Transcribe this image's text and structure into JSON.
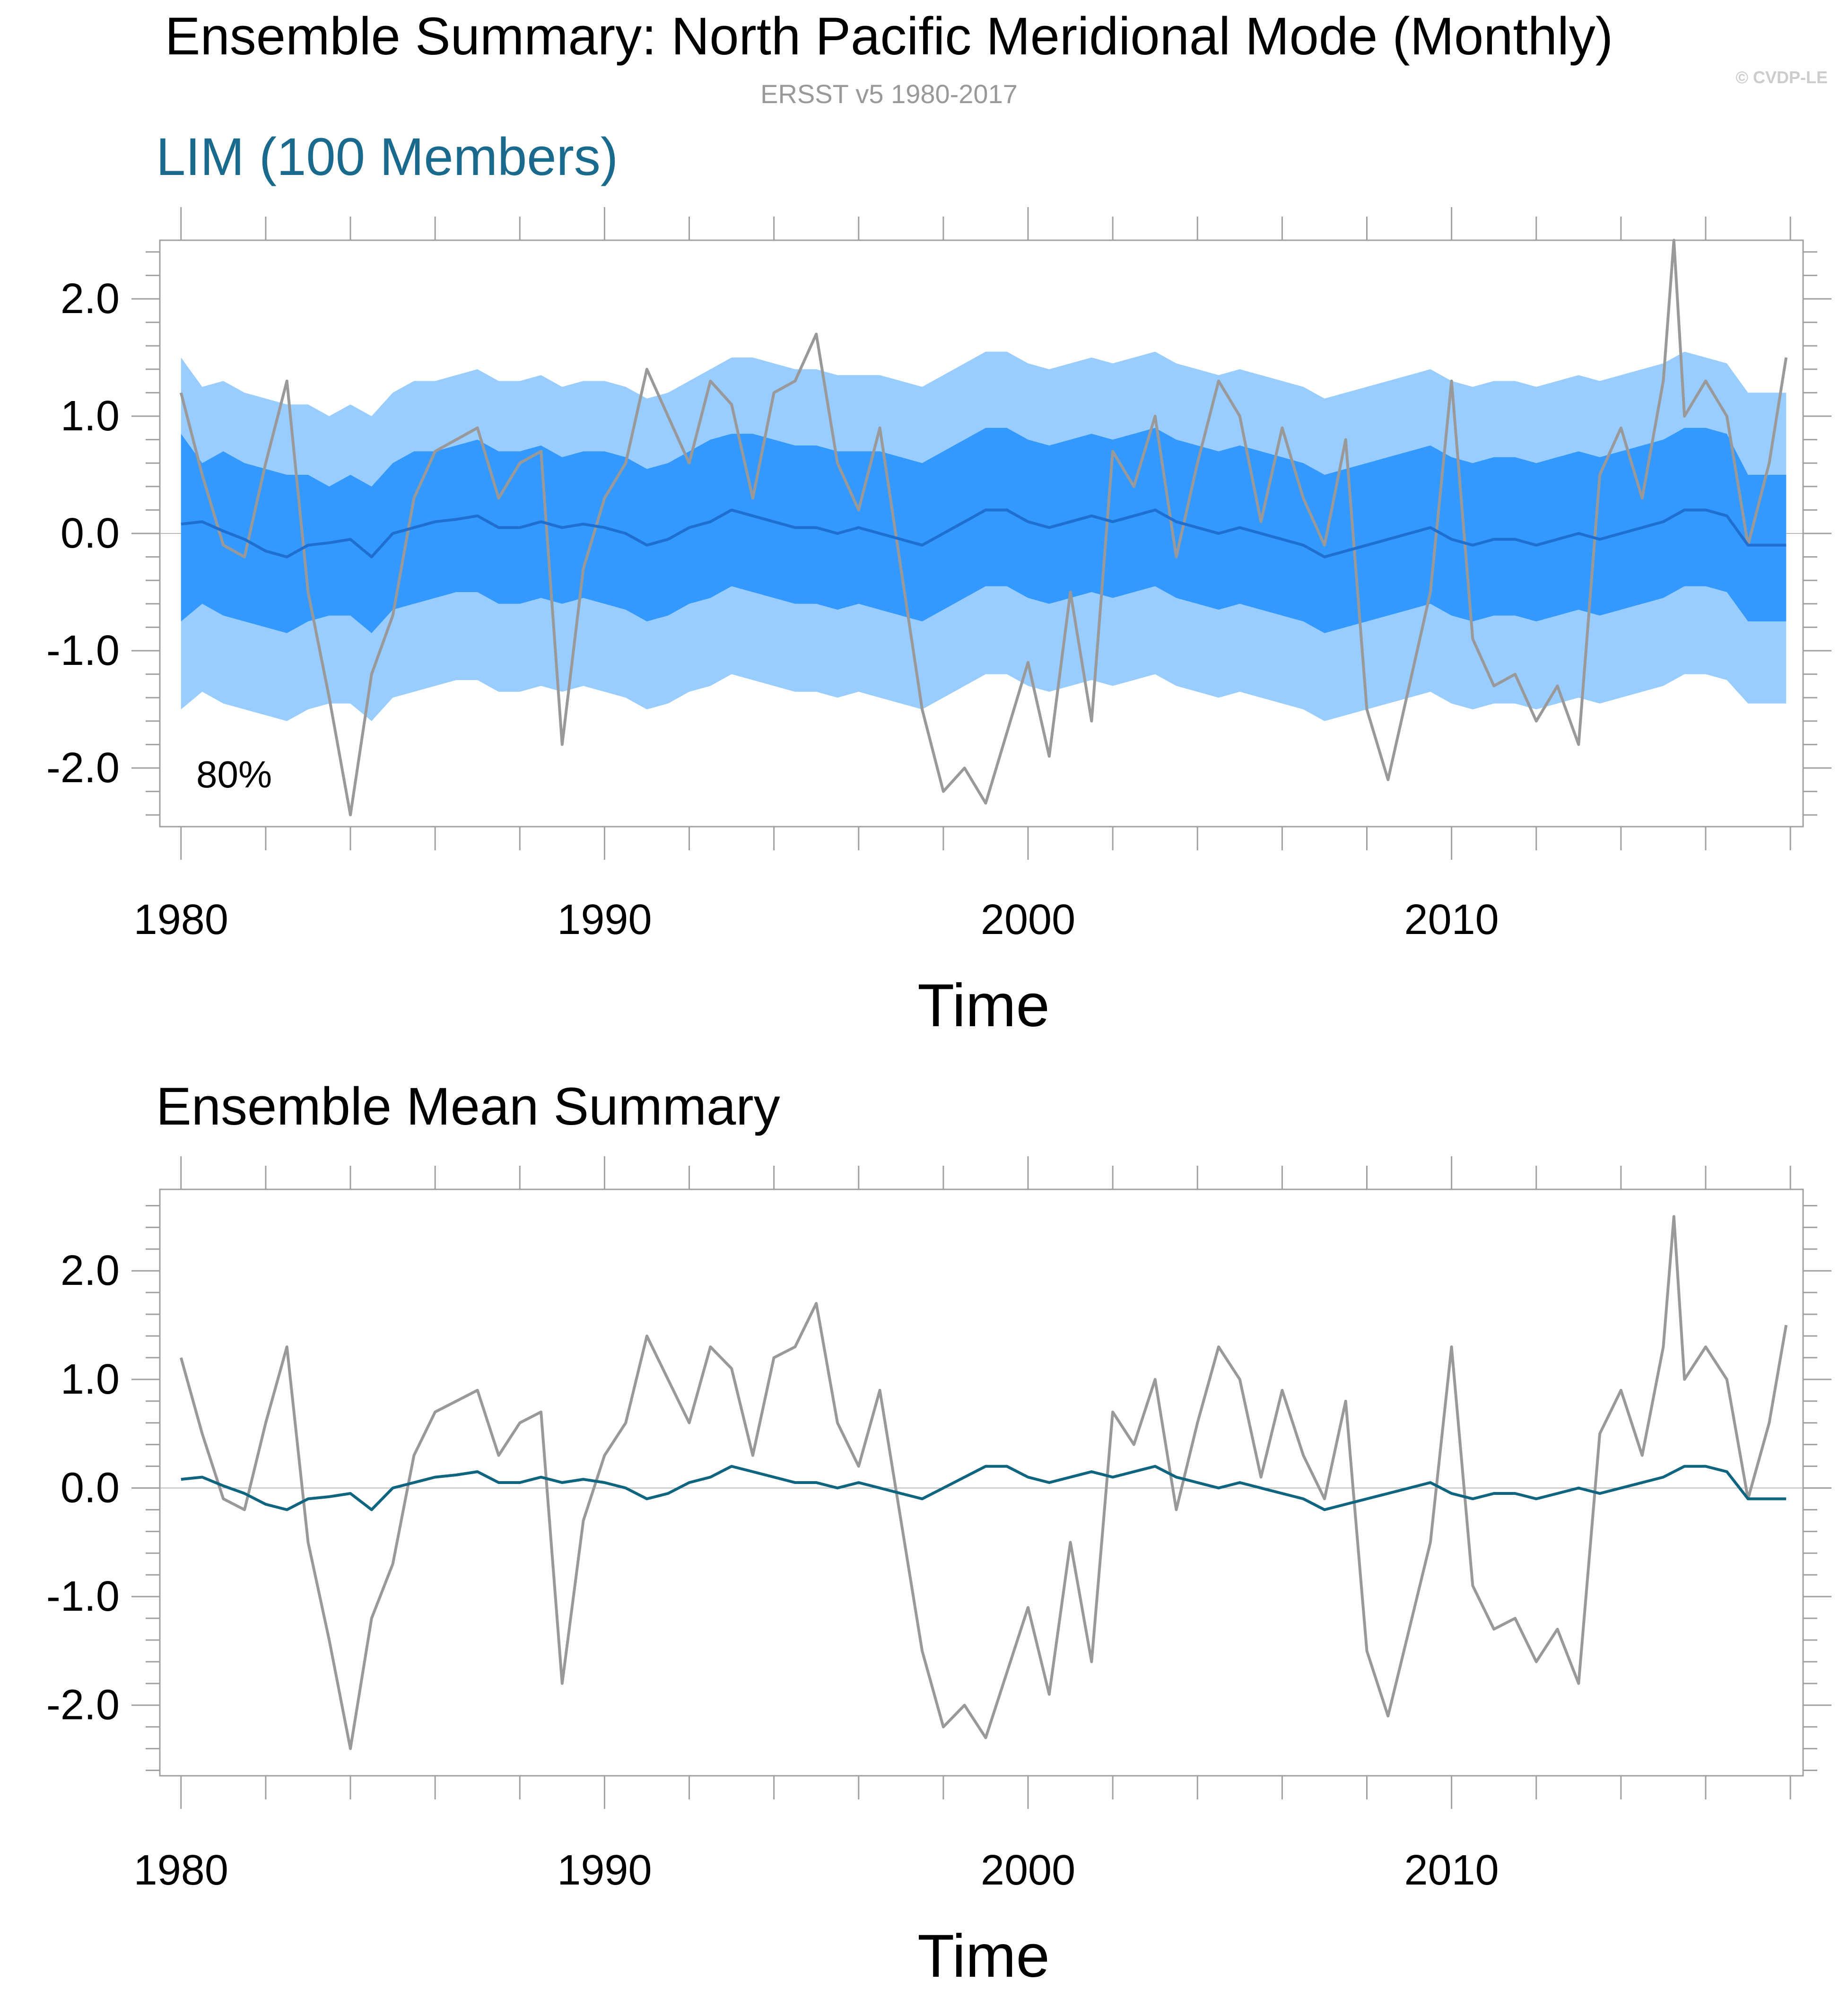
{
  "title": "Ensemble Summary: North Pacific Meridional Mode (Monthly)",
  "subtitle": "ERSST v5 1980-2017",
  "copyright": "© CVDP-LE",
  "colors": {
    "observed": "#999999",
    "ensemble_mean_top": "#1f6fd0",
    "ensemble_mean_bottom": "#0f6480",
    "band_80": "#3399ff",
    "band_full": "#99ccff",
    "panel1_title": "#196a8c",
    "axis": "#a0a0a0"
  },
  "chart_data": [
    {
      "type": "area",
      "title": "LIM (100 Members)",
      "xlabel": "Time",
      "ylabel": "",
      "annotation": "80%",
      "xlim": [
        1979.5,
        2018.3
      ],
      "ylim": [
        -2.5,
        2.5
      ],
      "x_ticks": [
        1980,
        1990,
        2000,
        2010
      ],
      "y_ticks": [
        "2.0",
        "1.0",
        "0.0",
        "-1.0",
        "-2.0"
      ],
      "y_tick_values": [
        2,
        1,
        0,
        -1,
        -2
      ],
      "grid": false,
      "x": [
        1980.0,
        1980.5,
        1981.0,
        1981.5,
        1982.0,
        1982.5,
        1983.0,
        1983.5,
        1984.0,
        1984.5,
        1985.0,
        1985.5,
        1986.0,
        1986.5,
        1987.0,
        1987.5,
        1988.0,
        1988.5,
        1989.0,
        1989.5,
        1990.0,
        1990.5,
        1991.0,
        1991.5,
        1992.0,
        1992.5,
        1993.0,
        1993.5,
        1994.0,
        1994.5,
        1995.0,
        1995.5,
        1996.0,
        1996.5,
        1997.0,
        1997.5,
        1998.0,
        1998.5,
        1999.0,
        1999.5,
        2000.0,
        2000.5,
        2001.0,
        2001.5,
        2002.0,
        2002.5,
        2003.0,
        2003.5,
        2004.0,
        2004.5,
        2005.0,
        2005.5,
        2006.0,
        2006.5,
        2007.0,
        2007.5,
        2008.0,
        2008.5,
        2009.0,
        2009.5,
        2010.0,
        2010.5,
        2011.0,
        2011.5,
        2012.0,
        2012.5,
        2013.0,
        2013.5,
        2014.0,
        2014.5,
        2015.0,
        2015.25,
        2015.5,
        2016.0,
        2016.5,
        2017.0,
        2017.5,
        2017.9
      ],
      "series": [
        {
          "name": "",
          "role": "observed",
          "values": [
            1.2,
            0.5,
            -0.1,
            -0.2,
            0.6,
            1.3,
            -0.5,
            -1.4,
            -2.4,
            -1.2,
            -0.7,
            0.3,
            0.7,
            0.8,
            0.9,
            0.3,
            0.6,
            0.7,
            -1.8,
            -0.3,
            0.3,
            0.6,
            1.4,
            1.0,
            0.6,
            1.3,
            1.1,
            0.3,
            1.2,
            1.3,
            1.7,
            0.6,
            0.2,
            0.9,
            -0.3,
            -1.5,
            -2.2,
            -2.0,
            -2.3,
            -1.7,
            -1.1,
            -1.9,
            -0.5,
            -1.6,
            0.7,
            0.4,
            1.0,
            -0.2,
            0.6,
            1.3,
            1.0,
            0.1,
            0.9,
            0.3,
            -0.1,
            0.8,
            -1.5,
            -2.1,
            -1.3,
            -0.5,
            1.3,
            -0.9,
            -1.3,
            -1.2,
            -1.6,
            -1.3,
            -1.8,
            0.5,
            0.9,
            0.3,
            1.3,
            2.5,
            1.0,
            1.3,
            1.0,
            -0.1,
            0.6,
            1.5
          ]
        },
        {
          "name": "",
          "role": "ensemble_mean",
          "values": [
            0.08,
            0.1,
            0.02,
            -0.05,
            -0.15,
            -0.2,
            -0.1,
            -0.08,
            -0.05,
            -0.2,
            0.0,
            0.05,
            0.1,
            0.12,
            0.15,
            0.05,
            0.05,
            0.1,
            0.05,
            0.08,
            0.05,
            0.0,
            -0.1,
            -0.05,
            0.05,
            0.1,
            0.2,
            0.15,
            0.1,
            0.05,
            0.05,
            0.0,
            0.05,
            0.0,
            -0.05,
            -0.1,
            0.0,
            0.1,
            0.2,
            0.2,
            0.1,
            0.05,
            0.1,
            0.15,
            0.1,
            0.15,
            0.2,
            0.1,
            0.05,
            0.0,
            0.05,
            0.0,
            -0.05,
            -0.1,
            -0.2,
            -0.15,
            -0.1,
            -0.05,
            0.0,
            0.05,
            -0.05,
            -0.1,
            -0.05,
            -0.05,
            -0.1,
            -0.05,
            0.0,
            -0.05,
            0.0,
            0.05,
            0.1,
            0.15,
            0.2,
            0.2,
            0.15,
            -0.1,
            -0.1,
            -0.1
          ]
        },
        {
          "name": "",
          "role": "band_80_upper",
          "values": [
            0.85,
            0.6,
            0.7,
            0.6,
            0.55,
            0.5,
            0.5,
            0.4,
            0.5,
            0.4,
            0.6,
            0.7,
            0.7,
            0.75,
            0.8,
            0.7,
            0.7,
            0.75,
            0.65,
            0.7,
            0.7,
            0.65,
            0.55,
            0.6,
            0.7,
            0.8,
            0.85,
            0.85,
            0.8,
            0.75,
            0.75,
            0.7,
            0.7,
            0.7,
            0.65,
            0.6,
            0.7,
            0.8,
            0.9,
            0.9,
            0.8,
            0.75,
            0.8,
            0.85,
            0.8,
            0.85,
            0.9,
            0.8,
            0.75,
            0.7,
            0.75,
            0.7,
            0.65,
            0.6,
            0.5,
            0.55,
            0.6,
            0.65,
            0.7,
            0.75,
            0.65,
            0.6,
            0.65,
            0.65,
            0.6,
            0.65,
            0.7,
            0.65,
            0.7,
            0.75,
            0.8,
            0.85,
            0.9,
            0.9,
            0.85,
            0.5,
            0.5,
            0.5
          ]
        },
        {
          "name": "",
          "role": "band_80_lower",
          "values": [
            -0.75,
            -0.6,
            -0.7,
            -0.75,
            -0.8,
            -0.85,
            -0.75,
            -0.7,
            -0.7,
            -0.85,
            -0.65,
            -0.6,
            -0.55,
            -0.5,
            -0.5,
            -0.6,
            -0.6,
            -0.55,
            -0.6,
            -0.55,
            -0.6,
            -0.65,
            -0.75,
            -0.7,
            -0.6,
            -0.55,
            -0.45,
            -0.5,
            -0.55,
            -0.6,
            -0.6,
            -0.65,
            -0.6,
            -0.65,
            -0.7,
            -0.75,
            -0.65,
            -0.55,
            -0.45,
            -0.45,
            -0.55,
            -0.6,
            -0.55,
            -0.5,
            -0.55,
            -0.5,
            -0.45,
            -0.55,
            -0.6,
            -0.65,
            -0.6,
            -0.65,
            -0.7,
            -0.75,
            -0.85,
            -0.8,
            -0.75,
            -0.7,
            -0.65,
            -0.6,
            -0.7,
            -0.75,
            -0.7,
            -0.7,
            -0.75,
            -0.7,
            -0.65,
            -0.7,
            -0.65,
            -0.6,
            -0.55,
            -0.5,
            -0.45,
            -0.45,
            -0.5,
            -0.75,
            -0.75,
            -0.75
          ]
        },
        {
          "name": "",
          "role": "band_full_upper",
          "values": [
            1.5,
            1.25,
            1.3,
            1.2,
            1.15,
            1.1,
            1.1,
            1.0,
            1.1,
            1.0,
            1.2,
            1.3,
            1.3,
            1.35,
            1.4,
            1.3,
            1.3,
            1.35,
            1.25,
            1.3,
            1.3,
            1.25,
            1.15,
            1.2,
            1.3,
            1.4,
            1.5,
            1.5,
            1.45,
            1.4,
            1.4,
            1.35,
            1.35,
            1.35,
            1.3,
            1.25,
            1.35,
            1.45,
            1.55,
            1.55,
            1.45,
            1.4,
            1.45,
            1.5,
            1.45,
            1.5,
            1.55,
            1.45,
            1.4,
            1.35,
            1.4,
            1.35,
            1.3,
            1.25,
            1.15,
            1.2,
            1.25,
            1.3,
            1.35,
            1.4,
            1.3,
            1.25,
            1.3,
            1.3,
            1.25,
            1.3,
            1.35,
            1.3,
            1.35,
            1.4,
            1.45,
            1.5,
            1.55,
            1.5,
            1.45,
            1.2,
            1.2,
            1.2
          ]
        },
        {
          "name": "",
          "role": "band_full_lower",
          "values": [
            -1.5,
            -1.35,
            -1.45,
            -1.5,
            -1.55,
            -1.6,
            -1.5,
            -1.45,
            -1.45,
            -1.6,
            -1.4,
            -1.35,
            -1.3,
            -1.25,
            -1.25,
            -1.35,
            -1.35,
            -1.3,
            -1.35,
            -1.3,
            -1.35,
            -1.4,
            -1.5,
            -1.45,
            -1.35,
            -1.3,
            -1.2,
            -1.25,
            -1.3,
            -1.35,
            -1.35,
            -1.4,
            -1.35,
            -1.4,
            -1.45,
            -1.5,
            -1.4,
            -1.3,
            -1.2,
            -1.2,
            -1.3,
            -1.35,
            -1.3,
            -1.25,
            -1.3,
            -1.25,
            -1.2,
            -1.3,
            -1.35,
            -1.4,
            -1.35,
            -1.4,
            -1.45,
            -1.5,
            -1.6,
            -1.55,
            -1.5,
            -1.45,
            -1.4,
            -1.35,
            -1.45,
            -1.5,
            -1.45,
            -1.45,
            -1.5,
            -1.45,
            -1.4,
            -1.45,
            -1.4,
            -1.35,
            -1.3,
            -1.25,
            -1.2,
            -1.2,
            -1.25,
            -1.45,
            -1.45,
            -1.45
          ]
        }
      ]
    },
    {
      "type": "line",
      "title": "Ensemble Mean Summary",
      "xlabel": "Time",
      "ylabel": "",
      "xlim": [
        1979.5,
        2018.3
      ],
      "ylim": [
        -2.65,
        2.75
      ],
      "x_ticks": [
        1980,
        1990,
        2000,
        2010
      ],
      "y_ticks": [
        "2.0",
        "1.0",
        "0.0",
        "-1.0",
        "-2.0"
      ],
      "y_tick_values": [
        2,
        1,
        0,
        -1,
        -2
      ],
      "grid": false,
      "x": [
        1980.0,
        1980.5,
        1981.0,
        1981.5,
        1982.0,
        1982.5,
        1983.0,
        1983.5,
        1984.0,
        1984.5,
        1985.0,
        1985.5,
        1986.0,
        1986.5,
        1987.0,
        1987.5,
        1988.0,
        1988.5,
        1989.0,
        1989.5,
        1990.0,
        1990.5,
        1991.0,
        1991.5,
        1992.0,
        1992.5,
        1993.0,
        1993.5,
        1994.0,
        1994.5,
        1995.0,
        1995.5,
        1996.0,
        1996.5,
        1997.0,
        1997.5,
        1998.0,
        1998.5,
        1999.0,
        1999.5,
        2000.0,
        2000.5,
        2001.0,
        2001.5,
        2002.0,
        2002.5,
        2003.0,
        2003.5,
        2004.0,
        2004.5,
        2005.0,
        2005.5,
        2006.0,
        2006.5,
        2007.0,
        2007.5,
        2008.0,
        2008.5,
        2009.0,
        2009.5,
        2010.0,
        2010.5,
        2011.0,
        2011.5,
        2012.0,
        2012.5,
        2013.0,
        2013.5,
        2014.0,
        2014.5,
        2015.0,
        2015.25,
        2015.5,
        2016.0,
        2016.5,
        2017.0,
        2017.5,
        2017.9
      ],
      "series": [
        {
          "name": "",
          "role": "observed",
          "values": [
            1.2,
            0.5,
            -0.1,
            -0.2,
            0.6,
            1.3,
            -0.5,
            -1.4,
            -2.4,
            -1.2,
            -0.7,
            0.3,
            0.7,
            0.8,
            0.9,
            0.3,
            0.6,
            0.7,
            -1.8,
            -0.3,
            0.3,
            0.6,
            1.4,
            1.0,
            0.6,
            1.3,
            1.1,
            0.3,
            1.2,
            1.3,
            1.7,
            0.6,
            0.2,
            0.9,
            -0.3,
            -1.5,
            -2.2,
            -2.0,
            -2.3,
            -1.7,
            -1.1,
            -1.9,
            -0.5,
            -1.6,
            0.7,
            0.4,
            1.0,
            -0.2,
            0.6,
            1.3,
            1.0,
            0.1,
            0.9,
            0.3,
            -0.1,
            0.8,
            -1.5,
            -2.1,
            -1.3,
            -0.5,
            1.3,
            -0.9,
            -1.3,
            -1.2,
            -1.6,
            -1.3,
            -1.8,
            0.5,
            0.9,
            0.3,
            1.3,
            2.5,
            1.0,
            1.3,
            1.0,
            -0.1,
            0.6,
            1.5
          ]
        },
        {
          "name": "",
          "role": "ensemble_mean",
          "values": [
            0.08,
            0.1,
            0.02,
            -0.05,
            -0.15,
            -0.2,
            -0.1,
            -0.08,
            -0.05,
            -0.2,
            0.0,
            0.05,
            0.1,
            0.12,
            0.15,
            0.05,
            0.05,
            0.1,
            0.05,
            0.08,
            0.05,
            0.0,
            -0.1,
            -0.05,
            0.05,
            0.1,
            0.2,
            0.15,
            0.1,
            0.05,
            0.05,
            0.0,
            0.05,
            0.0,
            -0.05,
            -0.1,
            0.0,
            0.1,
            0.2,
            0.2,
            0.1,
            0.05,
            0.1,
            0.15,
            0.1,
            0.15,
            0.2,
            0.1,
            0.05,
            0.0,
            0.05,
            0.0,
            -0.05,
            -0.1,
            -0.2,
            -0.15,
            -0.1,
            -0.05,
            0.0,
            0.05,
            -0.05,
            -0.1,
            -0.05,
            -0.05,
            -0.1,
            -0.05,
            0.0,
            -0.05,
            0.0,
            0.05,
            0.1,
            0.15,
            0.2,
            0.2,
            0.15,
            -0.1,
            -0.1,
            -0.1
          ]
        }
      ]
    }
  ]
}
